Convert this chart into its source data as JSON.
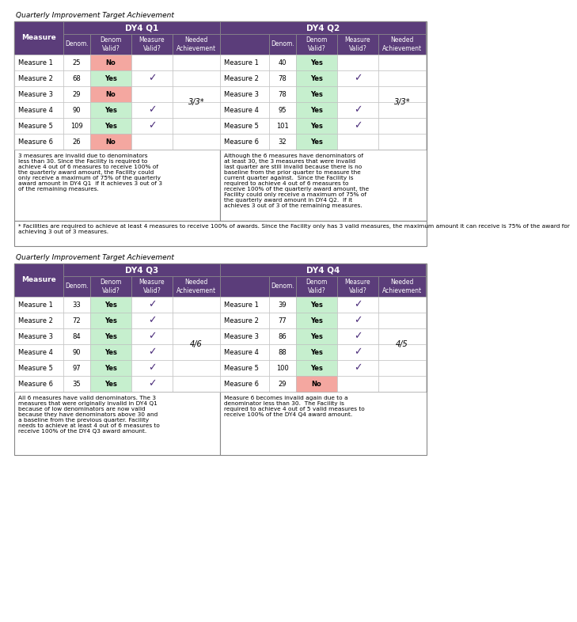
{
  "table1_title": "Quarterly Improvement Target Achievement",
  "table2_title": "Quarterly Improvement Target Achievement",
  "header_color": "#5b3d7a",
  "header_text_color": "#ffffff",
  "green_color": "#c6efce",
  "red_color": "#f4a7a0",
  "white_color": "#ffffff",
  "check_color": "#4b2d7a",
  "q1_label": "DY4 Q1",
  "q2_label": "DY4 Q2",
  "q3_label": "DY4 Q3",
  "q4_label": "DY4 Q4",
  "table1_q1": {
    "measures": [
      "Measure 1",
      "Measure 2",
      "Measure 3",
      "Measure 4",
      "Measure 5",
      "Measure 6"
    ],
    "denoms": [
      25,
      68,
      29,
      90,
      109,
      26
    ],
    "denom_valid": [
      "No",
      "Yes",
      "No",
      "Yes",
      "Yes",
      "No"
    ],
    "measure_valid": [
      false,
      true,
      false,
      true,
      true,
      false
    ],
    "needed": "3/3*"
  },
  "table1_q2": {
    "measures": [
      "Measure 1",
      "Measure 2",
      "Measure 3",
      "Measure 4",
      "Measure 5",
      "Measure 6"
    ],
    "denoms": [
      40,
      78,
      78,
      95,
      101,
      32
    ],
    "denom_valid": [
      "Yes",
      "Yes",
      "Yes",
      "Yes",
      "Yes",
      "Yes"
    ],
    "measure_valid": [
      false,
      true,
      false,
      true,
      true,
      false
    ],
    "needed": "3/3*"
  },
  "table2_q3": {
    "measures": [
      "Measure 1",
      "Measure 2",
      "Measure 3",
      "Measure 4",
      "Measure 5",
      "Measure 6"
    ],
    "denoms": [
      33,
      72,
      84,
      90,
      97,
      35
    ],
    "denom_valid": [
      "Yes",
      "Yes",
      "Yes",
      "Yes",
      "Yes",
      "Yes"
    ],
    "measure_valid": [
      true,
      true,
      true,
      true,
      true,
      true
    ],
    "needed": "4/6"
  },
  "table2_q4": {
    "measures": [
      "Measure 1",
      "Measure 2",
      "Measure 3",
      "Measure 4",
      "Measure 5",
      "Measure 6"
    ],
    "denoms": [
      39,
      77,
      86,
      88,
      100,
      29
    ],
    "denom_valid": [
      "Yes",
      "Yes",
      "Yes",
      "Yes",
      "Yes",
      "No"
    ],
    "measure_valid": [
      true,
      true,
      true,
      true,
      true,
      false
    ],
    "needed": "4/5"
  },
  "note1": "* Facilities are required to achieve at least 4 measures to receive 100% of awards. Since the Facility only has 3 valid measures, the maximum amount it can receive is 75% of the award for\nachieving 3 out of 3 measures.",
  "desc_q1": "3 measures are invalid due to denominators\nless than 30. Since the Facility is required to\nachieve 4 out of 6 measures to receive 100% of\nthe quarterly award amount, the Facility could\nonly receive a maximum of 75% of the quarterly\naward amount in DY4 Q1  if it achieves 3 out of 3\nof the remaining measures.",
  "desc_q2": "Although the 6 measures have denominators of\nat least 30, the 3 measures that were invalid\nlast quarter are still invalid because there is no\nbaseline from the prior quarter to measure the\ncurrent quarter against.  Since the Facility is\nrequired to achieve 4 out of 6 measures to\nreceive 100% of the quarterly award amount, the\nFacility could only receive a maximum of 75% of\nthe quarterly award amount in DY4 Q2.  If it\nachieves 3 out of 3 of the remaining measures.",
  "desc_q3": "All 6 measures have valid denominators. The 3\nmeasures that were originally invalid in DY4 Q1\nbecause of low denominators are now valid\nbecause they have denominators above 30 and\na baseline from the previous quarter. Facility\nneeds to achieve at least 4 out of 6 measures to\nreceive 100% of the DY4 Q3 award amount.",
  "desc_q4": "Measure 6 becomes invalid again due to a\ndenominator less than 30.  The Facility is\nrequired to achieve 4 out of 5 valid measures to\nreceive 100% of the DY4 Q4 award amount."
}
